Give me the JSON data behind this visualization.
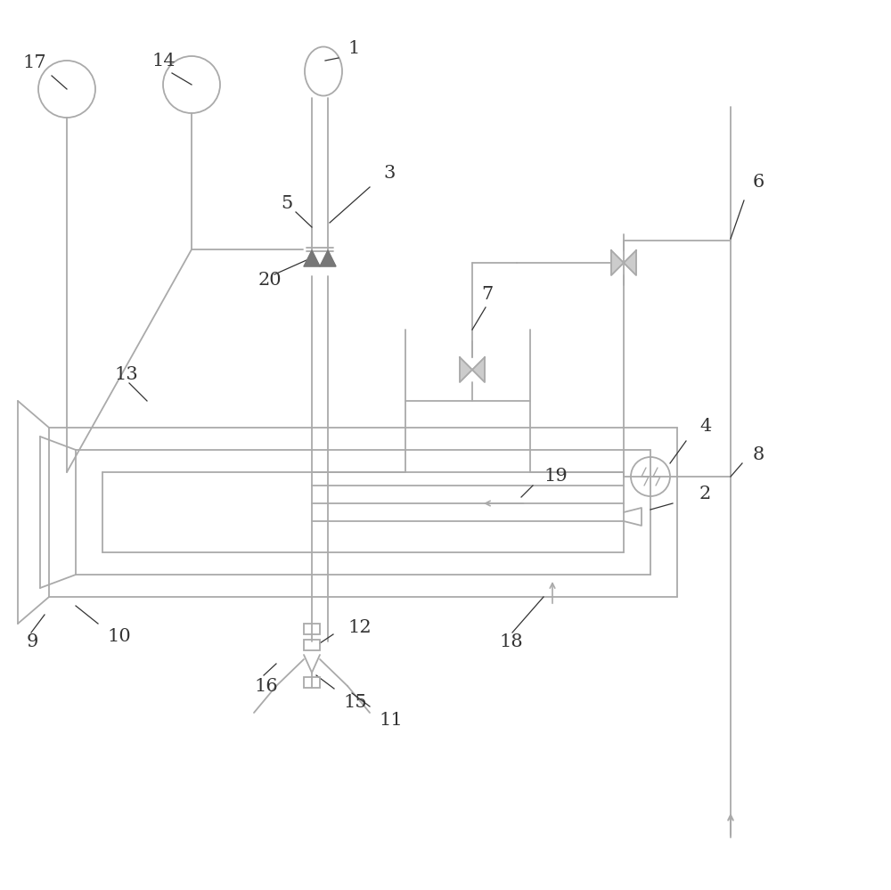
{
  "bg_color": "#ffffff",
  "lc": "#aaaaaa",
  "tc": "#333333",
  "lw": 1.3,
  "figsize": [
    10.0,
    9.99
  ],
  "dpi": 100
}
